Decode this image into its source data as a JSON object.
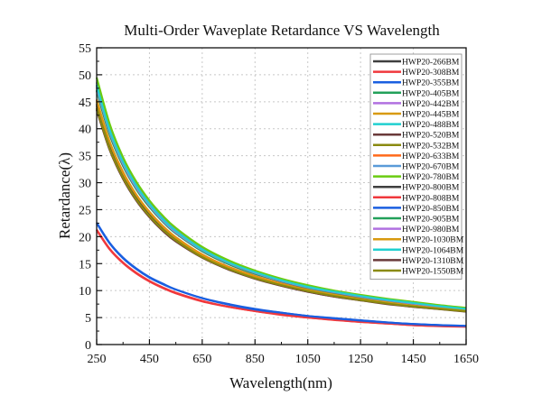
{
  "chart_data": {
    "type": "line",
    "title": "Multi-Order Waveplate Retardance VS Wavelength",
    "xlabel": "Wavelength(nm)",
    "ylabel": "Retardance(λ)",
    "xlim": [
      250,
      1650
    ],
    "ylim": [
      0,
      55
    ],
    "xticks": [
      250,
      450,
      650,
      850,
      1050,
      1250,
      1450,
      1650
    ],
    "yticks": [
      0,
      5,
      10,
      15,
      20,
      25,
      30,
      35,
      40,
      45,
      50,
      55
    ],
    "grid": true,
    "legend_position": "top-right",
    "x": [
      250,
      300,
      350,
      400,
      450,
      500,
      550,
      650,
      750,
      850,
      950,
      1050,
      1150,
      1250,
      1350,
      1450,
      1550,
      1650
    ],
    "series": [
      {
        "name": "HWP20-266BM",
        "color": "#3f3f3f",
        "values": [
          44.6,
          36.9,
          31.4,
          27.3,
          24.2,
          21.7,
          19.6,
          16.5,
          14.2,
          12.5,
          11.1,
          10.0,
          9.1,
          8.4,
          7.7,
          7.2,
          6.7,
          6.3
        ]
      },
      {
        "name": "HWP20-308BM",
        "color": "#f0383c",
        "values": [
          21.3,
          17.7,
          15.2,
          13.3,
          11.8,
          10.6,
          9.6,
          8.1,
          7.0,
          6.2,
          5.6,
          5.0,
          4.6,
          4.2,
          3.9,
          3.6,
          3.45,
          3.35
        ]
      },
      {
        "name": "HWP20-355BM",
        "color": "#1a5fe0",
        "values": [
          22.6,
          18.8,
          16.1,
          14.1,
          12.5,
          11.3,
          10.2,
          8.6,
          7.5,
          6.6,
          5.9,
          5.3,
          4.9,
          4.5,
          4.1,
          3.8,
          3.6,
          3.45
        ]
      },
      {
        "name": "HWP20-405BM",
        "color": "#22a05a",
        "values": [
          47.2,
          39.0,
          33.2,
          28.9,
          25.6,
          22.9,
          20.7,
          17.4,
          15.0,
          13.2,
          11.7,
          10.6,
          9.6,
          8.8,
          8.1,
          7.5,
          7.0,
          6.5
        ]
      },
      {
        "name": "HWP20-442BM",
        "color": "#b070e0",
        "values": [
          47.8,
          39.5,
          33.6,
          29.2,
          25.9,
          23.1,
          20.9,
          17.5,
          15.1,
          13.3,
          11.8,
          10.6,
          9.7,
          8.9,
          8.2,
          7.6,
          7.0,
          6.55
        ]
      },
      {
        "name": "HWP20-445BM",
        "color": "#d89a10",
        "values": [
          45.0,
          37.2,
          31.7,
          27.6,
          24.4,
          21.8,
          19.7,
          16.6,
          14.3,
          12.6,
          11.2,
          10.1,
          9.2,
          8.4,
          7.8,
          7.2,
          6.7,
          6.3
        ]
      },
      {
        "name": "HWP20-488BM",
        "color": "#20d0d0",
        "values": [
          48.2,
          39.8,
          33.9,
          29.5,
          26.1,
          23.3,
          21.1,
          17.7,
          15.2,
          13.4,
          11.9,
          10.7,
          9.8,
          9.0,
          8.3,
          7.7,
          7.1,
          6.6
        ]
      },
      {
        "name": "HWP20-520BM",
        "color": "#6a3a3a",
        "values": [
          43.6,
          36.1,
          30.8,
          26.8,
          23.7,
          21.2,
          19.2,
          16.2,
          13.9,
          12.3,
          10.9,
          9.8,
          8.9,
          8.2,
          7.6,
          7.0,
          6.6,
          6.15
        ]
      },
      {
        "name": "HWP20-532BM",
        "color": "#8a8a10",
        "values": [
          43.9,
          36.3,
          31.0,
          27.0,
          23.9,
          21.4,
          19.3,
          16.3,
          14.0,
          12.4,
          11.0,
          9.9,
          9.0,
          8.3,
          7.6,
          7.1,
          6.6,
          6.2
        ]
      },
      {
        "name": "HWP20-633BM",
        "color": "#ff6a1a",
        "values": [
          45.4,
          37.5,
          32.0,
          27.8,
          24.6,
          22.0,
          19.9,
          16.7,
          14.4,
          12.7,
          11.3,
          10.2,
          9.3,
          8.5,
          7.8,
          7.3,
          6.8,
          6.35
        ]
      },
      {
        "name": "HWP20-670BM",
        "color": "#5a9ad8",
        "values": [
          48.6,
          40.1,
          34.2,
          29.7,
          26.3,
          23.5,
          21.2,
          17.8,
          15.3,
          13.5,
          12.0,
          10.8,
          9.8,
          9.0,
          8.3,
          7.7,
          7.2,
          6.65
        ]
      },
      {
        "name": "HWP20-780BM",
        "color": "#6acc10",
        "values": [
          49.5,
          40.8,
          34.7,
          30.2,
          26.7,
          23.9,
          21.6,
          18.1,
          15.6,
          13.7,
          12.2,
          11.0,
          10.0,
          9.2,
          8.5,
          7.9,
          7.3,
          6.8
        ]
      },
      {
        "name": "HWP20-800BM",
        "color": "#3f3f3f",
        "values": [
          44.3,
          36.7,
          31.2,
          27.2,
          24.0,
          21.5,
          19.5,
          16.4,
          14.1,
          12.4,
          11.1,
          10.0,
          9.1,
          8.3,
          7.7,
          7.1,
          6.7,
          6.25
        ]
      },
      {
        "name": "HWP20-808BM",
        "color": "#f0383c",
        "values": [
          21.2,
          17.6,
          15.1,
          13.2,
          11.7,
          10.5,
          9.5,
          8.0,
          7.0,
          6.2,
          5.5,
          5.0,
          4.55,
          4.2,
          3.9,
          3.6,
          3.4,
          3.3
        ]
      },
      {
        "name": "HWP20-850BM",
        "color": "#1a5fe0",
        "values": [
          22.5,
          18.7,
          16.0,
          14.0,
          12.4,
          11.2,
          10.2,
          8.6,
          7.4,
          6.5,
          5.9,
          5.3,
          4.85,
          4.45,
          4.1,
          3.8,
          3.6,
          3.45
        ]
      },
      {
        "name": "HWP20-905BM",
        "color": "#22a05a",
        "values": [
          47.0,
          38.8,
          33.1,
          28.8,
          25.5,
          22.8,
          20.6,
          17.3,
          14.9,
          13.1,
          11.7,
          10.5,
          9.6,
          8.8,
          8.1,
          7.5,
          7.0,
          6.5
        ]
      },
      {
        "name": "HWP20-980BM",
        "color": "#b070e0",
        "values": [
          47.6,
          39.3,
          33.5,
          29.1,
          25.8,
          23.0,
          20.8,
          17.5,
          15.1,
          13.3,
          11.8,
          10.6,
          9.7,
          8.9,
          8.2,
          7.6,
          7.0,
          6.55
        ]
      },
      {
        "name": "HWP20-1030BM",
        "color": "#d89a10",
        "values": [
          45.2,
          37.4,
          31.8,
          27.7,
          24.5,
          21.9,
          19.8,
          16.6,
          14.3,
          12.6,
          11.2,
          10.1,
          9.2,
          8.4,
          7.8,
          7.2,
          6.7,
          6.3
        ]
      },
      {
        "name": "HWP20-1064BM",
        "color": "#20d0d0",
        "values": [
          48.0,
          39.6,
          33.8,
          29.4,
          26.0,
          23.2,
          21.0,
          17.6,
          15.2,
          13.4,
          11.9,
          10.7,
          9.8,
          9.0,
          8.3,
          7.7,
          7.1,
          6.6
        ]
      },
      {
        "name": "HWP20-1310BM",
        "color": "#6a3a3a",
        "values": [
          43.5,
          36.0,
          30.7,
          26.7,
          23.6,
          21.1,
          19.1,
          16.1,
          13.9,
          12.2,
          10.9,
          9.8,
          8.9,
          8.2,
          7.5,
          7.0,
          6.55,
          6.1
        ]
      },
      {
        "name": "HWP20-1550BM",
        "color": "#8a8a10",
        "values": [
          43.8,
          36.2,
          30.9,
          26.9,
          23.8,
          21.3,
          19.3,
          16.2,
          14.0,
          12.3,
          11.0,
          9.9,
          9.0,
          8.25,
          7.6,
          7.05,
          6.6,
          6.15
        ]
      }
    ]
  }
}
